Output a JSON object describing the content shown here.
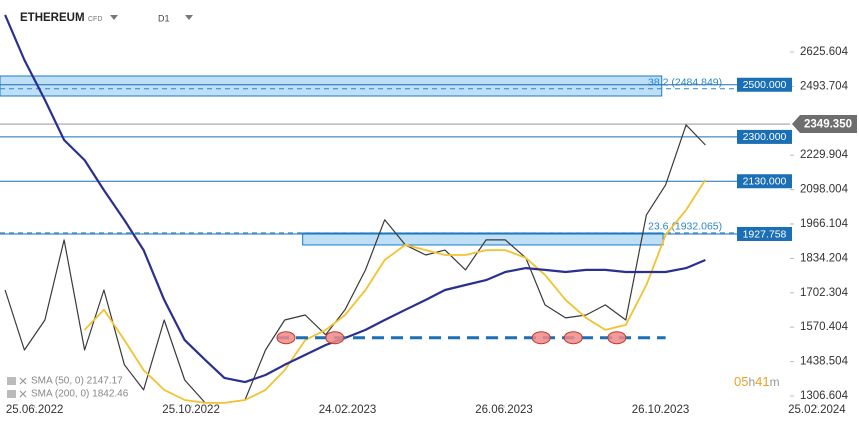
{
  "chart_data": {
    "type": "line",
    "title": "ETHEREUM",
    "subtitle": "CFD",
    "timeframe": "D1",
    "x": [
      "2022-06-02",
      "2022-06-17",
      "2022-07-03",
      "2022-07-18",
      "2022-08-03",
      "2022-08-18",
      "2022-09-03",
      "2022-09-18",
      "2022-10-04",
      "2022-10-20",
      "2022-11-05",
      "2022-11-20",
      "2022-12-06",
      "2022-12-22",
      "2023-01-06",
      "2023-01-22",
      "2023-02-07",
      "2023-02-22",
      "2023-03-10",
      "2023-03-25",
      "2023-04-10",
      "2023-04-26",
      "2023-05-11",
      "2023-05-27",
      "2023-06-12",
      "2023-06-27",
      "2023-07-13",
      "2023-07-28",
      "2023-08-13",
      "2023-08-29",
      "2023-09-13",
      "2023-09-29",
      "2023-10-15",
      "2023-10-30",
      "2023-11-15",
      "2023-11-30"
    ],
    "series": [
      {
        "color": "#3a3a3a",
        "values": [
          1713,
          1483,
          1598,
          1905,
          1483,
          1713,
          1426,
          1330,
          1598,
          1368,
          1280,
          1280,
          1291,
          1483,
          1598,
          1617,
          1541,
          1637,
          1790,
          1982,
          1886,
          1847,
          1866,
          1790,
          1905,
          1905,
          1836,
          1656,
          1606,
          1617,
          1656,
          1598,
          2001,
          2116,
          2346,
          2269
        ]
      },
      {
        "name": "SMA (50, 0) 2147.17",
        "color": "#f2c230",
        "values": [
          null,
          null,
          null,
          null,
          1560,
          1637,
          1521,
          1406,
          1330,
          1291,
          1280,
          1280,
          1291,
          1330,
          1406,
          1521,
          1560,
          1617,
          1713,
          1828,
          1886,
          1866,
          1847,
          1847,
          1866,
          1866,
          1836,
          1771,
          1675,
          1606,
          1560,
          1579,
          1732,
          1924,
          2020,
          2135
        ]
      },
      {
        "name": "SMA (200, 0) 1842.46",
        "color": "#2b2f8f",
        "values": [
          2768,
          2595,
          2442,
          2288,
          2211,
          2096,
          1981,
          1866,
          1675,
          1521,
          1445,
          1376,
          1360,
          1387,
          1426,
          1464,
          1502,
          1529,
          1560,
          1598,
          1637,
          1675,
          1713,
          1732,
          1751,
          1782,
          1797,
          1790,
          1782,
          1790,
          1790,
          1782,
          1782,
          1782,
          1797,
          1828
        ]
      }
    ],
    "xlim": [
      "2022-05-29",
      "2024-02-04"
    ],
    "xticks": [
      {
        "value": "2022-06-25",
        "label": "25.06.2022"
      },
      {
        "value": "2022-10-25",
        "label": "25.10.2022"
      },
      {
        "value": "2023-02-24",
        "label": "24.02.2023"
      },
      {
        "value": "2023-06-26",
        "label": "26.06.2023"
      },
      {
        "value": "2023-10-26",
        "label": "26.10.2023"
      },
      {
        "value": "2024-02-25",
        "label": "25.02.2024"
      }
    ],
    "ylim": [
      1272,
      2825
    ],
    "yticks": [
      1306.604,
      1438.504,
      1570.404,
      1702.304,
      1834.204,
      1966.104,
      2098.004,
      2229.904,
      2493.704,
      2625.604
    ],
    "levels": [
      {
        "value": 2500,
        "label": "2500.000"
      },
      {
        "value": 2300,
        "label": "2300.000"
      },
      {
        "value": 2130,
        "label": "2130.000"
      },
      {
        "value": 1927.758,
        "label": "1927.758"
      }
    ],
    "last_price": {
      "value": 2349.35,
      "label": "2349.350"
    },
    "fibonacci": [
      {
        "value": 2484.849,
        "label": "38.2 (2484.849)"
      },
      {
        "value": 1932.065,
        "label": "23.6 (1932.065)"
      }
    ],
    "zones": [
      {
        "from": "2022-05-29",
        "to": "2023-10-27",
        "low": 2456.9,
        "high": 2533.6
      },
      {
        "from": "2023-01-20",
        "to": "2023-10-28",
        "low": 1885.6,
        "high": 1931.6
      }
    ],
    "support": {
      "value": 1530,
      "from": "2022-12-31",
      "to": "2023-10-30",
      "touches": [
        "2023-01-07",
        "2023-02-14",
        "2023-07-25",
        "2023-08-19",
        "2023-09-22"
      ]
    },
    "countdown": [
      "05",
      "h",
      "41",
      "m"
    ]
  }
}
